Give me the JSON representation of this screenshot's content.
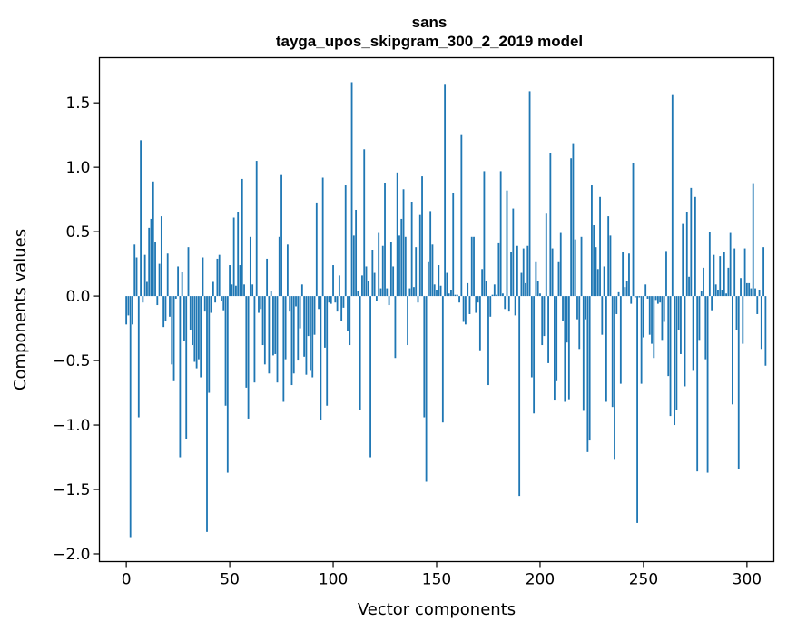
{
  "chart_data": {
    "type": "bar",
    "title": "sans",
    "subtitle": "tayga_upos_skipgram_300_2_2019 model",
    "xlabel": "Vector components",
    "ylabel": "Components values",
    "xlim": [
      -13,
      313
    ],
    "ylim": [
      -2.06,
      1.85
    ],
    "xticks": [
      0,
      50,
      100,
      150,
      200,
      250,
      300
    ],
    "yticks": [
      -2.0,
      -1.5,
      -1.0,
      -0.5,
      0.0,
      0.5,
      1.0,
      1.5
    ],
    "xtick_labels": [
      "0",
      "50",
      "100",
      "150",
      "200",
      "250",
      "300"
    ],
    "ytick_labels": [
      "−2.0",
      "−1.5",
      "−1.0",
      "−0.5",
      "0.0",
      "0.5",
      "1.0",
      "1.5"
    ],
    "grid": false,
    "bar_color": "#1f77b4",
    "values": [
      -0.22,
      -0.15,
      -1.87,
      -0.22,
      0.4,
      0.3,
      -0.94,
      1.21,
      -0.05,
      0.32,
      0.11,
      0.53,
      0.6,
      0.89,
      0.42,
      -0.07,
      0.25,
      0.62,
      -0.24,
      -0.19,
      0.33,
      -0.16,
      -0.53,
      -0.66,
      -0.02,
      0.23,
      -1.25,
      0.19,
      -0.35,
      -1.11,
      0.38,
      -0.26,
      -0.38,
      -0.51,
      -0.56,
      -0.49,
      -0.63,
      0.3,
      -0.12,
      -1.83,
      -0.75,
      -0.13,
      0.11,
      -0.05,
      0.29,
      0.32,
      -0.04,
      -0.11,
      -0.85,
      -1.37,
      0.24,
      0.09,
      0.61,
      0.08,
      0.65,
      0.24,
      0.91,
      0.09,
      -0.71,
      -0.95,
      0.46,
      0.09,
      -0.67,
      1.05,
      -0.13,
      -0.1,
      -0.38,
      -0.53,
      0.29,
      -0.6,
      0.04,
      -0.46,
      -0.45,
      -0.67,
      0.46,
      0.94,
      -0.82,
      -0.49,
      0.4,
      -0.12,
      -0.69,
      -0.6,
      -0.08,
      -0.5,
      -0.25,
      0.09,
      -0.47,
      -0.61,
      -0.31,
      -0.58,
      -0.63,
      -0.3,
      0.72,
      -0.1,
      -0.96,
      0.92,
      -0.4,
      -0.85,
      -0.05,
      -0.06,
      0.24,
      -0.05,
      -0.12,
      0.16,
      -0.19,
      -0.09,
      0.86,
      -0.27,
      -0.38,
      1.66,
      0.47,
      0.67,
      0.04,
      -0.88,
      0.16,
      1.14,
      0.23,
      0.12,
      -1.25,
      0.36,
      0.18,
      -0.04,
      0.49,
      0.06,
      0.39,
      0.88,
      0.06,
      -0.07,
      0.42,
      0.23,
      -0.48,
      0.96,
      0.47,
      0.6,
      0.83,
      0.46,
      -0.38,
      0.06,
      0.73,
      0.07,
      0.38,
      -0.05,
      0.63,
      0.93,
      -0.94,
      -1.44,
      0.27,
      0.66,
      0.4,
      0.09,
      0.05,
      0.24,
      0.08,
      -0.98,
      1.64,
      0.18,
      0.02,
      0.05,
      0.8,
      0.01,
      0.01,
      -0.05,
      1.25,
      -0.2,
      -0.22,
      0.1,
      -0.14,
      0.46,
      0.46,
      -0.13,
      -0.05,
      -0.42,
      0.21,
      0.97,
      0.12,
      -0.69,
      -0.16,
      0.01,
      0.09,
      0.01,
      0.41,
      0.97,
      0.02,
      -0.1,
      0.82,
      -0.12,
      0.34,
      0.68,
      -0.15,
      0.39,
      -1.55,
      0.18,
      0.37,
      0.1,
      0.39,
      1.59,
      -0.63,
      -0.91,
      0.27,
      0.12,
      0.02,
      -0.38,
      -0.31,
      0.64,
      -0.52,
      1.11,
      0.37,
      -0.81,
      -0.66,
      0.27,
      0.49,
      -0.19,
      -0.82,
      -0.36,
      -0.8,
      1.07,
      1.18,
      0.44,
      -0.18,
      -0.41,
      0.46,
      -0.89,
      -0.18,
      -1.21,
      -1.12,
      0.86,
      0.55,
      0.38,
      0.21,
      0.77,
      -0.3,
      0.23,
      -0.82,
      0.62,
      0.47,
      -0.86,
      -1.27,
      -0.14,
      0.03,
      -0.68,
      0.34,
      0.07,
      0.12,
      0.33,
      -0.06,
      1.03,
      -0.01,
      -1.76,
      -0.01,
      -0.68,
      -0.32,
      0.09,
      -0.02,
      -0.3,
      -0.37,
      -0.48,
      -0.03,
      -0.06,
      -0.05,
      -0.34,
      -0.2,
      0.35,
      -0.62,
      -0.93,
      1.56,
      -1.0,
      -0.88,
      -0.26,
      -0.45,
      0.56,
      -0.7,
      0.65,
      0.15,
      0.84,
      -0.58,
      0.77,
      -1.36,
      -0.34,
      0.04,
      0.22,
      -0.49,
      -1.37,
      0.5,
      -0.11,
      0.32,
      0.09,
      0.05,
      0.31,
      0.05,
      0.34,
      0.02,
      0.22,
      0.49,
      -0.84,
      0.37,
      -0.26,
      -1.34,
      0.14,
      -0.37,
      0.37,
      0.1,
      0.1,
      0.06,
      0.87,
      0.06,
      -0.14,
      0.05,
      -0.41,
      0.38,
      -0.54
    ]
  }
}
